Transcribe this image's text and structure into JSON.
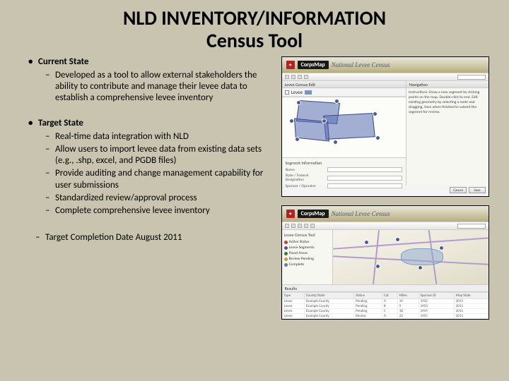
{
  "title_line1": "NLD INVENTORY/INFORMATION",
  "title_line2": "Census Tool",
  "current_state": {
    "heading": "Current State",
    "items": [
      "Developed as a tool to allow external stakeholders the ability to contribute and manage their levee data to establish a comprehensive levee inventory"
    ]
  },
  "target_state": {
    "heading": "Target State",
    "items": [
      "Real-time data integration with NLD",
      "Allow users to import levee data from existing data sets (e.g., .shp, excel, and PGDB files)",
      "Provide auditing and change management capability for user submissions",
      "Standardized review/approval process",
      "Complete comprehensive levee inventory"
    ],
    "completion": "Target Completion Date August 2011"
  },
  "screenshot1": {
    "brand_dark": "CorpsMap",
    "brand_light": "National Levee Census",
    "panel_layers": "Levee Census Edit",
    "layer_name": "Levee",
    "nav_title": "Navigation",
    "nav_text": "Instructions: Draw a new segment by clicking points on the map. Double-click to end. Edit existing geometry by selecting a node and dragging. Save when finished to submit the segment for review.",
    "seg_title": "Segment Information",
    "field1": "Name",
    "field2": "State / Federal Designation",
    "field3": "Sponsor / Operator",
    "btn_cancel": "Cancel",
    "btn_save": "Save"
  },
  "screenshot2": {
    "brand_dark": "CorpsMap",
    "brand_light": "National Levee Census",
    "panel_title": "Levee Census Tool",
    "tree": [
      {
        "label": "Active Status",
        "color": "#c04040"
      },
      {
        "label": "Levee Segments",
        "color": "#6a4aa0"
      },
      {
        "label": "Flood Areas",
        "color": "#3a7a3a"
      },
      {
        "label": "Review Pending",
        "color": "#c0a030"
      },
      {
        "label": "Complete",
        "color": "#5a7ac0"
      }
    ],
    "table_title": "Results",
    "columns": [
      "Type",
      "County/State",
      "Status",
      "Cat",
      "Miles",
      "Sponsor ID",
      "Map State"
    ],
    "rows": [
      [
        "Levee",
        "Example County",
        "Pending",
        "A",
        "14",
        "1452",
        "2011"
      ],
      [
        "Levee",
        "Example County",
        "Pending",
        "B",
        "9",
        "1453",
        "2011"
      ],
      [
        "Levee",
        "Example County",
        "Pending",
        "C",
        "18",
        "1454",
        "2011"
      ],
      [
        "Levee",
        "Example County",
        "Review",
        "A",
        "22",
        "1455",
        "2011"
      ],
      [
        "Levee",
        "Example County",
        "Review",
        "B",
        "31",
        "1456",
        "2011"
      ]
    ]
  },
  "colors": {
    "slide_bg": "#c8c4b0",
    "header_grad_top": "#e8e6dc",
    "header_grad_bot": "#b7ad7d",
    "poly_fill": "rgba(90,110,180,0.55)",
    "node_fill": "#4a5aa0"
  }
}
